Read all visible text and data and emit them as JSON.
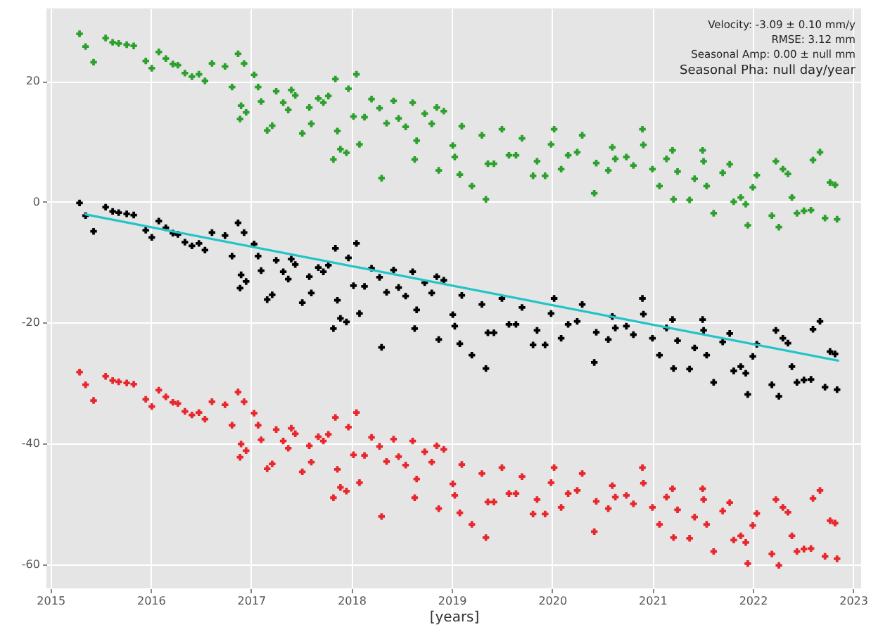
{
  "chart_data": {
    "type": "scatter",
    "xlabel": "[years]",
    "xlim": [
      2014.96,
      2023.08
    ],
    "xticks": [
      2015,
      2016,
      2017,
      2018,
      2019,
      2020,
      2021,
      2022,
      2023
    ],
    "ylim": [
      -64,
      32
    ],
    "yticks": [
      -60,
      -40,
      -20,
      0,
      20
    ],
    "grid": true,
    "marker": "cross",
    "annotations": [
      "Velocity: -3.09 ± 0.10 mm/y",
      "RMSE: 3.12 mm",
      "Seasonal Amp: 0.00 ± null mm",
      "Seasonal Pha: null day/year"
    ],
    "x": [
      2015.29,
      2015.35,
      2015.43,
      2015.55,
      2015.62,
      2015.68,
      2015.76,
      2015.83,
      2015.95,
      2016.01,
      2016.08,
      2016.15,
      2016.22,
      2016.27,
      2016.34,
      2016.41,
      2016.48,
      2016.54,
      2016.61,
      2016.74,
      2016.81,
      2016.87,
      2016.89,
      2016.9,
      2016.93,
      2016.95,
      2017.03,
      2017.07,
      2017.1,
      2017.16,
      2017.21,
      2017.25,
      2017.32,
      2017.37,
      2017.4,
      2017.44,
      2017.51,
      2017.58,
      2017.6,
      2017.67,
      2017.72,
      2017.77,
      2017.82,
      2017.84,
      2017.86,
      2017.89,
      2017.95,
      2017.97,
      2018.02,
      2018.05,
      2018.08,
      2018.13,
      2018.2,
      2018.28,
      2018.3,
      2018.35,
      2018.42,
      2018.47,
      2018.54,
      2018.61,
      2018.63,
      2018.65,
      2018.73,
      2018.8,
      2018.85,
      2018.87,
      2018.92,
      2019.01,
      2019.03,
      2019.08,
      2019.1,
      2019.2,
      2019.3,
      2019.34,
      2019.36,
      2019.42,
      2019.5,
      2019.57,
      2019.64,
      2019.7,
      2019.81,
      2019.85,
      2019.93,
      2019.99,
      2020.02,
      2020.09,
      2020.16,
      2020.25,
      2020.3,
      2020.42,
      2020.44,
      2020.56,
      2020.6,
      2020.63,
      2020.74,
      2020.81,
      2020.9,
      2020.91,
      2021.0,
      2021.07,
      2021.14,
      2021.2,
      2021.21,
      2021.25,
      2021.37,
      2021.42,
      2021.5,
      2021.51,
      2021.54,
      2021.61,
      2021.7,
      2021.77,
      2021.81,
      2021.88,
      2021.93,
      2021.95,
      2022.0,
      2022.04,
      2022.19,
      2022.23,
      2022.26,
      2022.3,
      2022.35,
      2022.39,
      2022.44,
      2022.51,
      2022.58,
      2022.6,
      2022.67,
      2022.72,
      2022.77,
      2022.82,
      2022.84
    ],
    "series": [
      {
        "color": "#2ca02c",
        "values": [
          27.8,
          25.7,
          23.1,
          27.1,
          26.4,
          26.2,
          26.0,
          25.8,
          23.3,
          22.1,
          24.8,
          23.7,
          22.8,
          22.6,
          21.3,
          20.7,
          21.1,
          20.0,
          22.9,
          22.4,
          19.0,
          24.5,
          13.7,
          15.9,
          22.9,
          14.8,
          21.0,
          19.0,
          16.6,
          11.8,
          12.6,
          18.3,
          16.4,
          15.2,
          18.5,
          17.6,
          11.3,
          15.6,
          12.9,
          17.1,
          16.4,
          17.5,
          7.0,
          20.3,
          11.7,
          8.7,
          8.1,
          18.7,
          14.1,
          21.1,
          9.5,
          14.0,
          17.0,
          15.5,
          3.9,
          13.0,
          16.7,
          13.8,
          12.4,
          16.4,
          7.0,
          10.1,
          14.6,
          12.9,
          15.6,
          5.2,
          15.0,
          9.3,
          7.4,
          4.5,
          12.5,
          2.6,
          11.0,
          0.4,
          6.3,
          6.3,
          12.0,
          7.7,
          7.7,
          10.5,
          4.3,
          6.7,
          4.3,
          9.5,
          12.0,
          5.4,
          7.7,
          8.2,
          11.0,
          1.4,
          6.4,
          5.2,
          9.0,
          7.1,
          7.4,
          6.0,
          12.0,
          9.4,
          5.4,
          2.6,
          7.1,
          8.5,
          0.4,
          5.0,
          0.3,
          3.8,
          8.5,
          6.7,
          2.6,
          -1.9,
          4.8,
          6.2,
          0.0,
          0.7,
          -0.4,
          -3.9,
          2.4,
          4.4,
          -2.3,
          6.7,
          -4.2,
          5.4,
          4.6,
          0.7,
          -1.9,
          -1.5,
          -1.4,
          6.9,
          8.2,
          -2.7,
          3.2,
          2.8,
          -2.9
        ]
      },
      {
        "color": "#000000",
        "values": [
          -0.2,
          -2.3,
          -4.9,
          -0.9,
          -1.6,
          -1.8,
          -2.0,
          -2.2,
          -4.7,
          -5.9,
          -3.2,
          -4.3,
          -5.2,
          -5.4,
          -6.7,
          -7.3,
          -6.9,
          -8.0,
          -5.1,
          -5.6,
          -9.0,
          -3.5,
          -14.3,
          -12.1,
          -5.1,
          -13.2,
          -7.0,
          -9.0,
          -11.4,
          -16.2,
          -15.4,
          -9.7,
          -11.6,
          -12.8,
          -9.5,
          -10.4,
          -16.7,
          -12.4,
          -15.1,
          -10.9,
          -11.6,
          -10.5,
          -21.0,
          -7.7,
          -16.3,
          -19.3,
          -19.9,
          -9.3,
          -13.9,
          -6.9,
          -18.5,
          -14.0,
          -11.0,
          -12.5,
          -24.1,
          -15.0,
          -11.3,
          -14.2,
          -15.6,
          -11.6,
          -21.0,
          -17.9,
          -13.4,
          -15.1,
          -12.4,
          -22.8,
          -13.0,
          -18.7,
          -20.6,
          -23.5,
          -15.5,
          -25.4,
          -17.0,
          -27.6,
          -21.7,
          -21.7,
          -16.0,
          -20.3,
          -20.3,
          -17.5,
          -23.7,
          -21.3,
          -23.7,
          -18.5,
          -16.0,
          -22.6,
          -20.3,
          -19.8,
          -17.0,
          -26.6,
          -21.6,
          -22.8,
          -19.0,
          -20.9,
          -20.6,
          -22.0,
          -16.0,
          -18.6,
          -22.6,
          -25.4,
          -20.9,
          -19.5,
          -27.6,
          -23.0,
          -27.7,
          -24.2,
          -19.5,
          -21.3,
          -25.4,
          -29.9,
          -23.2,
          -21.8,
          -28.0,
          -27.3,
          -28.4,
          -31.9,
          -25.6,
          -23.6,
          -30.3,
          -21.3,
          -32.2,
          -22.6,
          -23.4,
          -27.3,
          -29.9,
          -29.5,
          -29.4,
          -21.1,
          -19.8,
          -30.7,
          -24.8,
          -25.2,
          -31.1
        ]
      },
      {
        "color": "#e8262b",
        "values": [
          -28.2,
          -30.3,
          -32.9,
          -28.9,
          -29.6,
          -29.8,
          -30.0,
          -30.2,
          -32.7,
          -33.9,
          -31.2,
          -32.3,
          -33.2,
          -33.4,
          -34.7,
          -35.3,
          -34.9,
          -36.0,
          -33.1,
          -33.6,
          -37.0,
          -31.5,
          -42.3,
          -40.1,
          -33.1,
          -41.2,
          -35.0,
          -37.0,
          -39.4,
          -44.2,
          -43.4,
          -37.7,
          -39.6,
          -40.8,
          -37.5,
          -38.4,
          -44.7,
          -40.4,
          -43.1,
          -38.9,
          -39.6,
          -38.5,
          -49.0,
          -35.7,
          -44.3,
          -47.3,
          -47.9,
          -37.3,
          -41.9,
          -34.9,
          -46.5,
          -42.0,
          -39.0,
          -40.5,
          -52.1,
          -43.0,
          -39.3,
          -42.2,
          -43.6,
          -39.6,
          -49.0,
          -45.9,
          -41.4,
          -43.1,
          -40.4,
          -50.8,
          -41.0,
          -46.7,
          -48.6,
          -51.5,
          -43.5,
          -53.4,
          -45.0,
          -55.6,
          -49.7,
          -49.7,
          -44.0,
          -48.3,
          -48.3,
          -45.5,
          -51.7,
          -49.3,
          -51.7,
          -46.5,
          -44.0,
          -50.6,
          -48.3,
          -47.8,
          -45.0,
          -54.6,
          -49.6,
          -50.8,
          -47.0,
          -48.9,
          -48.6,
          -50.0,
          -44.0,
          -46.6,
          -50.6,
          -53.4,
          -48.9,
          -47.5,
          -55.6,
          -51.0,
          -55.7,
          -52.2,
          -47.5,
          -49.3,
          -53.4,
          -57.9,
          -51.2,
          -49.8,
          -56.0,
          -55.3,
          -56.4,
          -59.9,
          -53.6,
          -51.6,
          -58.3,
          -49.3,
          -60.2,
          -50.6,
          -51.4,
          -55.3,
          -57.9,
          -57.5,
          -57.4,
          -49.1,
          -47.8,
          -58.7,
          -52.8,
          -53.2,
          -59.1
        ]
      },
      {
        "type": "line",
        "marker": "none",
        "color": "#22c4c8",
        "x": [
          2015.35,
          2022.85
        ],
        "values": [
          -2.1,
          -26.3
        ]
      }
    ]
  }
}
